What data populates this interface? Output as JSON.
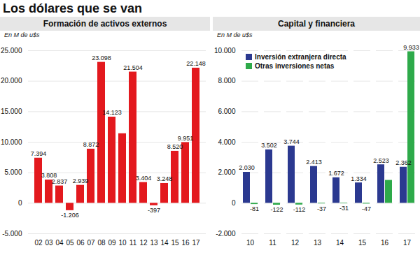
{
  "title": "Los dólares que se van",
  "chart_data": [
    {
      "type": "bar",
      "title": "Formación de activos externos",
      "y_label": "En M de u$s",
      "categories": [
        "02",
        "03",
        "04",
        "05",
        "06",
        "07",
        "08",
        "09",
        "10",
        "11",
        "12",
        "13",
        "14",
        "15",
        "16",
        "17"
      ],
      "values": [
        7394,
        3808,
        2837,
        -1206,
        2939,
        8872,
        23098,
        14123,
        11400,
        21504,
        3404,
        -397,
        3248,
        8520,
        9951,
        22148
      ],
      "value_labels": [
        "7.394",
        "3.808",
        "2.837",
        "-1.206",
        "2.939",
        "8.872",
        "23.098",
        "14.123",
        null,
        "21.504",
        "3.404",
        "-397",
        "3.248",
        "8.520",
        "9.951",
        "22.148"
      ],
      "color": "#e3191e",
      "ylim": [
        -5000,
        25000
      ],
      "yticks": [
        {
          "value": -5000,
          "label": "-5.000"
        },
        0,
        {
          "value": 5000,
          "label": "5.000"
        },
        {
          "value": 10000,
          "label": "10.000"
        },
        {
          "value": 15000,
          "label": "15.000"
        },
        {
          "value": 20000,
          "label": "20.000"
        },
        {
          "value": 25000,
          "label": "25.000"
        }
      ],
      "grid": true,
      "data_labels": true
    },
    {
      "type": "bar",
      "title": "Capital y financiera",
      "y_label": "En M de u$s",
      "categories": [
        "10",
        "11",
        "12",
        "13",
        "14",
        "15",
        "16",
        "17"
      ],
      "series": [
        {
          "name": "Inversión extranjera directa",
          "color": "#2b3990",
          "values": [
            2030,
            3502,
            3744,
            2413,
            1672,
            1334,
            2523,
            2362
          ],
          "value_labels": [
            "2.030",
            "3.502",
            "3.744",
            "2.413",
            "1.672",
            "1.334",
            "2.523",
            "2.362"
          ]
        },
        {
          "name": "Otras inversiones netas",
          "color": "#2eaa4a",
          "values": [
            -81,
            -122,
            -112,
            -37,
            -31,
            -47,
            1500,
            9933
          ],
          "value_labels": [
            "-81",
            "-122",
            "-112",
            "-37",
            "-31",
            "-47",
            null,
            "9.933"
          ]
        }
      ],
      "ylim": [
        -2000,
        10000
      ],
      "yticks": [
        {
          "value": -2000,
          "label": "-2.000"
        },
        0,
        {
          "value": 2000,
          "label": "2.000"
        },
        {
          "value": 4000,
          "label": "4.000"
        },
        {
          "value": 6000,
          "label": "6.000"
        },
        {
          "value": 8000,
          "label": "8.000"
        },
        {
          "value": 10000,
          "label": "10.000"
        }
      ],
      "grid": true,
      "legend": "top-left",
      "data_labels": true
    }
  ]
}
